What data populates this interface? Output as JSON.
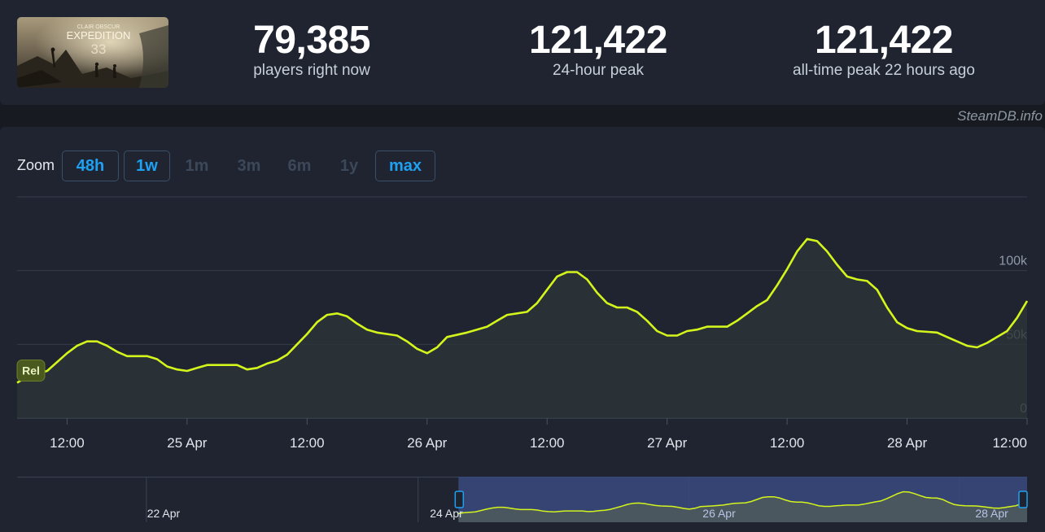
{
  "game": {
    "thumbnail_top_text": "CLAIR OBSCUR",
    "thumbnail_title": "EXPEDITION",
    "thumbnail_number": "33"
  },
  "stats": [
    {
      "value": "79,385",
      "label": "players right now"
    },
    {
      "value": "121,422",
      "label": "24-hour peak"
    },
    {
      "value": "121,422",
      "label": "all-time peak 22 hours ago"
    }
  ],
  "watermark": "SteamDB.info",
  "zoom": {
    "label": "Zoom",
    "buttons": [
      {
        "label": "48h",
        "state": "active"
      },
      {
        "label": "1w",
        "state": "active"
      },
      {
        "label": "1m",
        "state": "disabled"
      },
      {
        "label": "3m",
        "state": "disabled"
      },
      {
        "label": "6m",
        "state": "disabled"
      },
      {
        "label": "1y",
        "state": "disabled"
      },
      {
        "label": "max",
        "state": "active"
      }
    ]
  },
  "colors": {
    "line": "#d4f51c",
    "accent": "#1ea1f2",
    "navigator_range": "#3a4a7e"
  },
  "chart_data": {
    "type": "line",
    "title": "",
    "series_badge": "Rel",
    "y_ticks": [
      {
        "value": 0,
        "label": "0"
      },
      {
        "value": 50000,
        "label": "50k"
      },
      {
        "value": 100000,
        "label": "100k"
      }
    ],
    "ylim": [
      0,
      150000
    ],
    "x_ticks": [
      {
        "t": 12,
        "label": "12:00"
      },
      {
        "t": 24,
        "label": "25 Apr"
      },
      {
        "t": 36,
        "label": "12:00"
      },
      {
        "t": 48,
        "label": "26 Apr"
      },
      {
        "t": 60,
        "label": "12:00"
      },
      {
        "t": 72,
        "label": "27 Apr"
      },
      {
        "t": 84,
        "label": "12:00"
      },
      {
        "t": 96,
        "label": "28 Apr"
      },
      {
        "t": 108,
        "label": "12:00"
      }
    ],
    "xlim": [
      7,
      108
    ],
    "t_unit": "hours from 24 Apr 00:00",
    "points": [
      [
        7,
        24000
      ],
      [
        8,
        28000
      ],
      [
        10,
        32000
      ],
      [
        12,
        44000
      ],
      [
        13,
        49000
      ],
      [
        14,
        52000
      ],
      [
        15,
        52000
      ],
      [
        16,
        49000
      ],
      [
        17,
        45000
      ],
      [
        18,
        42000
      ],
      [
        20,
        42000
      ],
      [
        21,
        40000
      ],
      [
        22,
        35000
      ],
      [
        23,
        33000
      ],
      [
        24,
        32000
      ],
      [
        25,
        34000
      ],
      [
        26,
        36000
      ],
      [
        28,
        36000
      ],
      [
        29,
        36000
      ],
      [
        30,
        33000
      ],
      [
        31,
        34000
      ],
      [
        32,
        37000
      ],
      [
        33,
        39000
      ],
      [
        34,
        43000
      ],
      [
        35,
        50000
      ],
      [
        36,
        57000
      ],
      [
        37,
        65000
      ],
      [
        38,
        70000
      ],
      [
        39,
        71000
      ],
      [
        40,
        69000
      ],
      [
        41,
        64000
      ],
      [
        42,
        60000
      ],
      [
        43,
        58000
      ],
      [
        44,
        57000
      ],
      [
        45,
        56000
      ],
      [
        46,
        52000
      ],
      [
        47,
        47000
      ],
      [
        48,
        44000
      ],
      [
        49,
        48000
      ],
      [
        50,
        55000
      ],
      [
        52,
        58000
      ],
      [
        54,
        62000
      ],
      [
        55,
        66000
      ],
      [
        56,
        70000
      ],
      [
        58,
        72000
      ],
      [
        59,
        78000
      ],
      [
        60,
        87000
      ],
      [
        61,
        96000
      ],
      [
        62,
        99000
      ],
      [
        63,
        99000
      ],
      [
        64,
        94000
      ],
      [
        65,
        85000
      ],
      [
        66,
        78000
      ],
      [
        67,
        75000
      ],
      [
        68,
        75000
      ],
      [
        69,
        72000
      ],
      [
        70,
        66000
      ],
      [
        71,
        59000
      ],
      [
        72,
        56000
      ],
      [
        73,
        56000
      ],
      [
        74,
        59000
      ],
      [
        75,
        60000
      ],
      [
        76,
        62000
      ],
      [
        78,
        62000
      ],
      [
        79,
        66000
      ],
      [
        80,
        71000
      ],
      [
        81,
        76000
      ],
      [
        82,
        80000
      ],
      [
        83,
        90000
      ],
      [
        84,
        101000
      ],
      [
        85,
        113000
      ],
      [
        86,
        121422
      ],
      [
        87,
        120000
      ],
      [
        88,
        113000
      ],
      [
        89,
        104000
      ],
      [
        90,
        96000
      ],
      [
        91,
        94000
      ],
      [
        92,
        93000
      ],
      [
        93,
        87000
      ],
      [
        94,
        75000
      ],
      [
        95,
        65000
      ],
      [
        96,
        61000
      ],
      [
        97,
        59000
      ],
      [
        99,
        58000
      ],
      [
        100,
        55000
      ],
      [
        101,
        52000
      ],
      [
        102,
        49000
      ],
      [
        103,
        48000
      ],
      [
        104,
        51000
      ],
      [
        105,
        55000
      ],
      [
        106,
        59000
      ],
      [
        107,
        68000
      ],
      [
        108,
        79385
      ]
    ],
    "navigator": {
      "x_labels": [
        {
          "t": 0.14,
          "label": "22 Apr"
        },
        {
          "t": 0.42,
          "label": "24 Apr"
        },
        {
          "t": 0.69,
          "label": "26 Apr"
        },
        {
          "t": 0.96,
          "label": "28 Apr"
        }
      ],
      "dividers": [
        0.128,
        0.397,
        0.665,
        0.933
      ],
      "range": [
        0.437,
        1.0
      ]
    }
  }
}
